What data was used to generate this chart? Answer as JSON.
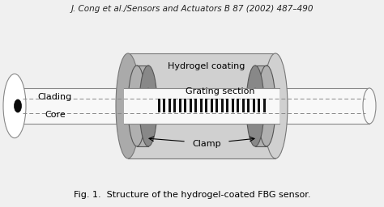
{
  "title_text": "J. Cong et al./Sensors and Actuators B 87 (2002) 487–490",
  "caption_text": "Fig. 1.  Structure of the hydrogel-coated FBG sensor.",
  "label_clading": "Clading",
  "label_core": "Core",
  "label_hydrogel": "Hydrogel coating",
  "label_grating": "Grating section",
  "label_clamp": "Clamp",
  "bg_color": "#f0f0f0",
  "fiber_color": "#f8f8f8",
  "fiber_edge": "#888888",
  "hydrogel_color": "#d0d0d0",
  "hydrogel_dark": "#aaaaaa",
  "hydrogel_edge": "#777777",
  "clamp_color": "#b0b0b0",
  "clamp_dark": "#888888",
  "clamp_edge": "#555555",
  "grating_color": "#111111",
  "dashed_color": "#888888",
  "title_fontsize": 7.5,
  "caption_fontsize": 8,
  "label_fontsize": 8
}
